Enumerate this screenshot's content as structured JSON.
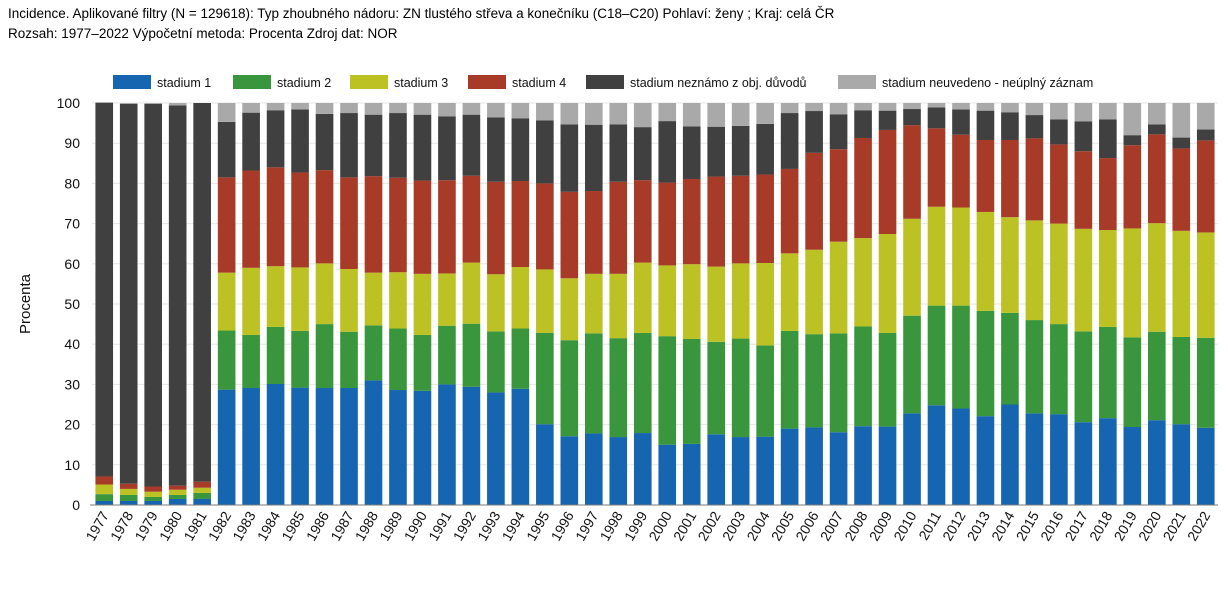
{
  "header": {
    "line1": "Incidence. Aplikované filtry (N = 129618): Typ zhoubného nádoru: ZN tlustého střeva a konečníku (C18–C20) Pohlaví: ženy ; Kraj: celá ČR",
    "line2": "Rozsah: 1977–2022 Výpočetní metoda: Procenta Zdroj dat: NOR"
  },
  "chart_data": {
    "type": "bar",
    "stacked": true,
    "ylabel": "Procenta",
    "ylim": [
      0,
      100
    ],
    "yticks": [
      0,
      10,
      20,
      30,
      40,
      50,
      60,
      70,
      80,
      90,
      100
    ],
    "legend_position": "top",
    "categories": [
      "1977",
      "1978",
      "1979",
      "1980",
      "1981",
      "1982",
      "1983",
      "1984",
      "1985",
      "1986",
      "1987",
      "1988",
      "1989",
      "1990",
      "1991",
      "1992",
      "1993",
      "1994",
      "1995",
      "1996",
      "1997",
      "1998",
      "1999",
      "2000",
      "2001",
      "2002",
      "2003",
      "2004",
      "2005",
      "2006",
      "2007",
      "2008",
      "2009",
      "2010",
      "2011",
      "2012",
      "2013",
      "2014",
      "2015",
      "2016",
      "2017",
      "2018",
      "2019",
      "2020",
      "2021",
      "2022"
    ],
    "series": [
      {
        "name": "stadium 1",
        "color": "#1565b0",
        "values": [
          1.0,
          1.0,
          1.0,
          1.5,
          1.5,
          28.7,
          29.1,
          30.1,
          29.2,
          29.1,
          29.1,
          31.0,
          28.6,
          28.4,
          30.0,
          29.4,
          28.0,
          28.9,
          20.1,
          17.1,
          17.8,
          16.9,
          17.9,
          15.0,
          15.2,
          17.6,
          16.9,
          17.0,
          19.0,
          19.3,
          18.1,
          19.6,
          19.5,
          22.8,
          24.8,
          24.0,
          22.1,
          25.0,
          22.8,
          22.6,
          20.6,
          21.6,
          19.4,
          21.1,
          20.1,
          19.2
        ]
      },
      {
        "name": "stadium 2",
        "color": "#3a963c",
        "values": [
          1.7,
          1.5,
          1.0,
          1.0,
          1.5,
          14.7,
          13.2,
          14.2,
          14.1,
          15.9,
          14.0,
          13.7,
          15.3,
          13.9,
          14.6,
          15.7,
          15.2,
          15.0,
          22.7,
          23.9,
          24.9,
          24.6,
          24.9,
          27.0,
          26.1,
          23.0,
          24.5,
          22.7,
          24.3,
          23.2,
          24.6,
          24.8,
          23.3,
          24.3,
          24.8,
          25.6,
          26.2,
          22.8,
          23.2,
          22.4,
          22.6,
          22.7,
          22.3,
          22.0,
          21.7,
          22.4
        ]
      },
      {
        "name": "stadium 3",
        "color": "#bcc223",
        "values": [
          2.4,
          1.5,
          1.3,
          1.3,
          1.3,
          14.4,
          16.7,
          15.1,
          15.8,
          15.1,
          15.6,
          13.1,
          14.0,
          15.2,
          13.0,
          15.2,
          14.2,
          15.3,
          15.8,
          15.4,
          14.8,
          16.0,
          17.5,
          17.6,
          18.6,
          18.7,
          18.7,
          20.5,
          19.3,
          21.0,
          22.8,
          22.0,
          24.6,
          24.1,
          24.6,
          24.4,
          24.6,
          23.8,
          24.8,
          25.0,
          25.5,
          24.1,
          27.1,
          27.0,
          26.4,
          26.2
        ]
      },
      {
        "name": "stadium 4",
        "color": "#a83b27",
        "values": [
          2.0,
          1.3,
          1.3,
          1.0,
          1.5,
          23.7,
          24.2,
          24.6,
          23.6,
          23.2,
          22.8,
          24.0,
          23.5,
          23.2,
          23.2,
          21.6,
          23.0,
          21.4,
          21.4,
          21.5,
          20.6,
          22.9,
          20.5,
          20.6,
          21.2,
          22.4,
          21.8,
          22.0,
          21.0,
          24.1,
          23.0,
          24.9,
          25.9,
          23.3,
          19.5,
          18.1,
          17.9,
          19.2,
          20.4,
          19.7,
          19.3,
          17.9,
          20.7,
          22.1,
          20.5,
          22.9
        ]
      },
      {
        "name": "stadium neznámo z obj. důvodů",
        "color": "#404040",
        "values": [
          93.0,
          94.5,
          95.2,
          94.6,
          94.2,
          13.8,
          14.4,
          14.2,
          15.7,
          14.0,
          16.0,
          15.3,
          16.1,
          16.4,
          15.9,
          15.2,
          16.0,
          15.6,
          15.7,
          16.8,
          16.5,
          14.3,
          13.2,
          15.3,
          13.1,
          12.4,
          12.4,
          12.6,
          13.9,
          10.4,
          8.7,
          6.9,
          4.8,
          4.0,
          5.2,
          6.3,
          7.3,
          6.9,
          5.8,
          6.2,
          7.4,
          9.6,
          2.5,
          2.5,
          2.7,
          2.7
        ]
      },
      {
        "name": "stadium neuvedeno - neúplný záznam",
        "color": "#a9a9a9",
        "values": [
          0.0,
          0.2,
          0.2,
          0.6,
          0.0,
          4.7,
          2.4,
          1.8,
          1.6,
          2.7,
          2.5,
          2.9,
          2.5,
          2.9,
          3.3,
          2.9,
          3.6,
          3.8,
          4.3,
          5.3,
          5.4,
          5.3,
          6.0,
          4.5,
          5.8,
          5.9,
          5.7,
          5.2,
          2.5,
          2.0,
          2.8,
          1.8,
          1.9,
          1.5,
          1.1,
          1.6,
          1.9,
          2.3,
          3.0,
          4.1,
          4.6,
          4.1,
          8.0,
          5.3,
          8.6,
          6.6
        ]
      }
    ]
  }
}
